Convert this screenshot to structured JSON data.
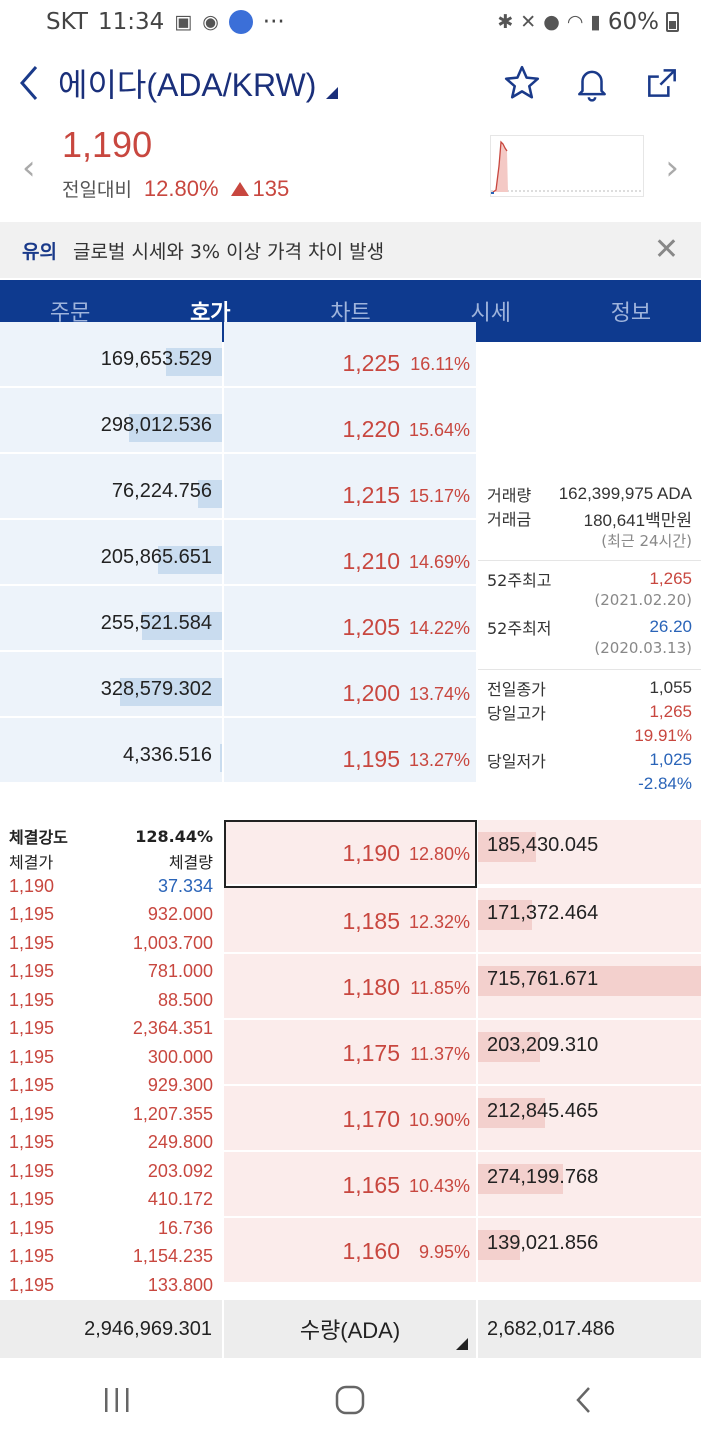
{
  "status_bar": {
    "carrier": "SKT",
    "time": "11:34",
    "more": "···",
    "battery": "60%"
  },
  "header": {
    "title": "에이다(ADA/KRW)"
  },
  "price": {
    "current": "1,190",
    "change_label": "전일대비",
    "change_rate": "12.80%",
    "change_amount": "135"
  },
  "notice": {
    "tag": "유의",
    "text": "글로벌 시세와 3% 이상 가격 차이 발생"
  },
  "tabs": [
    {
      "label": "주문"
    },
    {
      "label": "호가"
    },
    {
      "label": "차트"
    },
    {
      "label": "시세"
    },
    {
      "label": "정보"
    }
  ],
  "asks": [
    {
      "qty": "169,653.529",
      "price": "1,225",
      "pct": "16.11%",
      "fill": 0.25
    },
    {
      "qty": "298,012.536",
      "price": "1,220",
      "pct": "15.64%",
      "fill": 0.42
    },
    {
      "qty": "76,224.756",
      "price": "1,215",
      "pct": "15.17%",
      "fill": 0.11
    },
    {
      "qty": "205,865.651",
      "price": "1,210",
      "pct": "14.69%",
      "fill": 0.29
    },
    {
      "qty": "255,521.584",
      "price": "1,205",
      "pct": "14.22%",
      "fill": 0.36
    },
    {
      "qty": "328,579.302",
      "price": "1,200",
      "pct": "13.74%",
      "fill": 0.46
    },
    {
      "qty": "4,336.516",
      "price": "1,195",
      "pct": "13.27%",
      "fill": 0.01
    }
  ],
  "info": {
    "volume_label": "거래량",
    "volume": "162,399,975 ADA",
    "amount_label": "거래금",
    "amount": "180,641백만원",
    "period": "(최근 24시간)",
    "high52_label": "52주최고",
    "high52": "1,265",
    "high52_date": "(2021.02.20)",
    "low52_label": "52주최저",
    "low52": "26.20",
    "low52_date": "(2020.03.13)",
    "prev_close_label": "전일종가",
    "prev_close": "1,055",
    "day_high_label": "당일고가",
    "day_high": "1,265",
    "day_high_pct": "19.91%",
    "day_low_label": "당일저가",
    "day_low": "1,025",
    "day_low_pct": "-2.84%"
  },
  "bids": [
    {
      "price": "1,190",
      "pct": "12.80%",
      "qty": "185,430.045",
      "fill": 0.26
    },
    {
      "price": "1,185",
      "pct": "12.32%",
      "qty": "171,372.464",
      "fill": 0.24
    },
    {
      "price": "1,180",
      "pct": "11.85%",
      "qty": "715,761.671",
      "fill": 1.0
    },
    {
      "price": "1,175",
      "pct": "11.37%",
      "qty": "203,209.310",
      "fill": 0.28
    },
    {
      "price": "1,170",
      "pct": "10.90%",
      "qty": "212,845.465",
      "fill": 0.3
    },
    {
      "price": "1,165",
      "pct": "10.43%",
      "qty": "274,199.768",
      "fill": 0.38
    },
    {
      "price": "1,160",
      "pct": "9.95%",
      "qty": "139,021.856",
      "fill": 0.19
    }
  ],
  "trades": {
    "strength_label": "체결강도",
    "strength": "128.44%",
    "price_header": "체결가",
    "volume_header": "체결량",
    "rows": [
      {
        "price": "1,190",
        "vol": "37.334",
        "side": "sell"
      },
      {
        "price": "1,195",
        "vol": "932.000",
        "side": "buy"
      },
      {
        "price": "1,195",
        "vol": "1,003.700",
        "side": "buy"
      },
      {
        "price": "1,195",
        "vol": "781.000",
        "side": "buy"
      },
      {
        "price": "1,195",
        "vol": "88.500",
        "side": "buy"
      },
      {
        "price": "1,195",
        "vol": "2,364.351",
        "side": "buy"
      },
      {
        "price": "1,195",
        "vol": "300.000",
        "side": "buy"
      },
      {
        "price": "1,195",
        "vol": "929.300",
        "side": "buy"
      },
      {
        "price": "1,195",
        "vol": "1,207.355",
        "side": "buy"
      },
      {
        "price": "1,195",
        "vol": "249.800",
        "side": "buy"
      },
      {
        "price": "1,195",
        "vol": "203.092",
        "side": "buy"
      },
      {
        "price": "1,195",
        "vol": "410.172",
        "side": "buy"
      },
      {
        "price": "1,195",
        "vol": "16.736",
        "side": "buy"
      },
      {
        "price": "1,195",
        "vol": "1,154.235",
        "side": "buy"
      },
      {
        "price": "1,195",
        "vol": "133.800",
        "side": "buy"
      }
    ]
  },
  "summary": {
    "ask_total": "2,946,969.301",
    "unit_label": "수량(ADA)",
    "bid_total": "2,682,017.486"
  },
  "colors": {
    "up": "#c8473f",
    "down": "#2a64b8",
    "brand": "#0e3a8f"
  }
}
